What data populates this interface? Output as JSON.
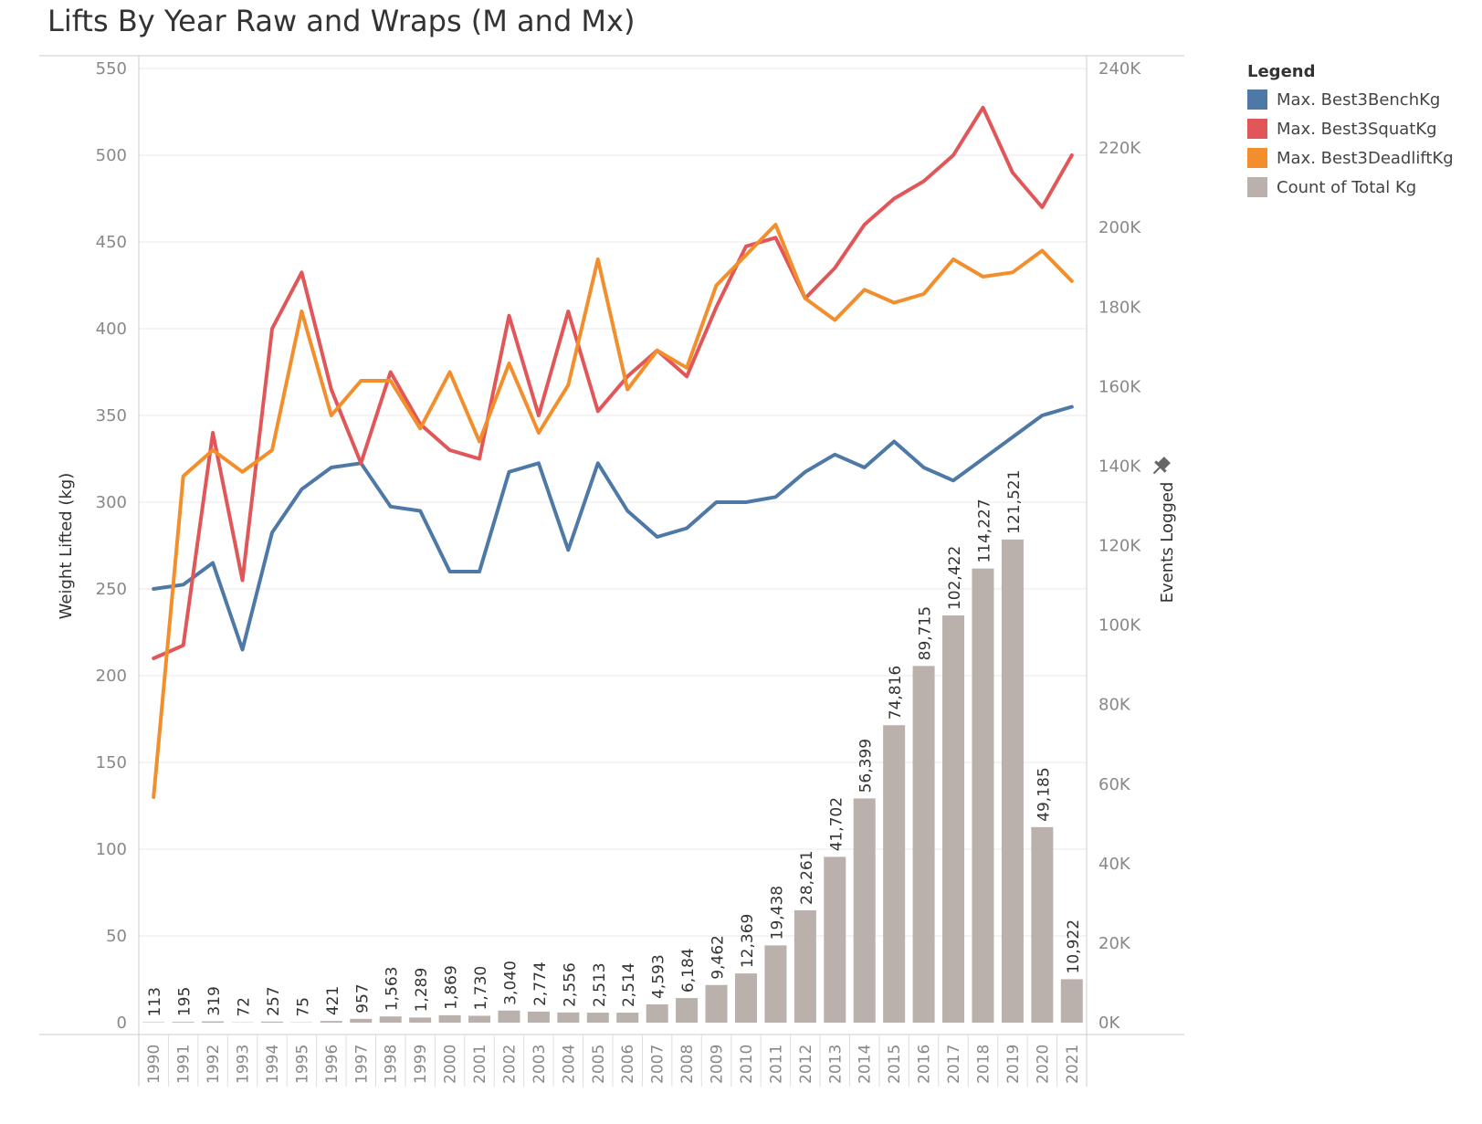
{
  "chart_data": {
    "type": "bar+line",
    "title": "Lifts By Year Raw and Wraps (M and Mx)",
    "ylabel_left": "Weight Lifted (kg)",
    "ylabel_right": "Events Logged",
    "ylim_left": [
      0,
      550
    ],
    "ylim_right": [
      0,
      240000
    ],
    "yticks_left": [
      "0",
      "50",
      "100",
      "150",
      "200",
      "250",
      "300",
      "350",
      "400",
      "450",
      "500",
      "550"
    ],
    "yticks_right": [
      "0K",
      "20K",
      "40K",
      "60K",
      "80K",
      "100K",
      "120K",
      "140K",
      "160K",
      "180K",
      "200K",
      "220K",
      "240K"
    ],
    "categories": [
      "1990",
      "1991",
      "1992",
      "1993",
      "1994",
      "1995",
      "1996",
      "1997",
      "1998",
      "1999",
      "2000",
      "2001",
      "2002",
      "2003",
      "2004",
      "2005",
      "2006",
      "2007",
      "2008",
      "2009",
      "2010",
      "2011",
      "2012",
      "2013",
      "2014",
      "2015",
      "2016",
      "2017",
      "2018",
      "2019",
      "2020",
      "2021"
    ],
    "legend_title": "Legend",
    "series": [
      {
        "name": "Max. Best3BenchKg",
        "kind": "line",
        "axis": "left",
        "color": "#4e79a7",
        "values": [
          250,
          252.5,
          265,
          215,
          282.5,
          307.5,
          320,
          322.5,
          297.5,
          295,
          260,
          260,
          317.5,
          322.5,
          272.5,
          322.5,
          295,
          280,
          285,
          300,
          300,
          303,
          317.5,
          327.5,
          320,
          335,
          320,
          312.5,
          325,
          337.5,
          350,
          355
        ]
      },
      {
        "name": "Max. Best3SquatKg",
        "kind": "line",
        "axis": "left",
        "color": "#e15759",
        "values": [
          210,
          217.5,
          340,
          255,
          400,
          432.5,
          365,
          322.5,
          375,
          345,
          330,
          325,
          407.5,
          350,
          410,
          352.5,
          372.5,
          387.5,
          372.5,
          412.5,
          447.5,
          452.5,
          417.5,
          435,
          460,
          475,
          485,
          500,
          527.5,
          490,
          470,
          500
        ]
      },
      {
        "name": "Max. Best3DeadliftKg",
        "kind": "line",
        "axis": "left",
        "color": "#f28e2b",
        "values": [
          130,
          315,
          330,
          317.5,
          330,
          410,
          350,
          370,
          370,
          342.5,
          375,
          335,
          380,
          340,
          367.5,
          440,
          365,
          387.5,
          377.5,
          425,
          442.5,
          460,
          417.5,
          405,
          422.5,
          415,
          420,
          440,
          430,
          432.5,
          445,
          427.5
        ]
      },
      {
        "name": "Count of Total Kg",
        "kind": "bar",
        "axis": "right",
        "color": "#bab0ac",
        "values": [
          113,
          195,
          319,
          72,
          257,
          75,
          421,
          957,
          1563,
          1289,
          1869,
          1730,
          3040,
          2774,
          2556,
          2513,
          2514,
          4593,
          6184,
          9462,
          12369,
          19438,
          28261,
          41702,
          56399,
          74816,
          89715,
          102422,
          114227,
          121521,
          49185,
          10922
        ],
        "labels": [
          "113",
          "195",
          "319",
          "72",
          "257",
          "75",
          "421",
          "957",
          "1,563",
          "1,289",
          "1,869",
          "1,730",
          "3,040",
          "2,774",
          "2,556",
          "2,513",
          "2,514",
          "4,593",
          "6,184",
          "9,462",
          "12,369",
          "19,438",
          "28,261",
          "41,702",
          "56,399",
          "74,816",
          "89,715",
          "102,422",
          "114,227",
          "121,521",
          "49,185",
          "10,922"
        ]
      }
    ],
    "grid": true,
    "legend_position": "right"
  },
  "colors": {
    "grid": "#e8e8e8",
    "axis": "#cccccc",
    "tick_text": "#888888",
    "label_text": "#333333",
    "pin_icon": "#666666"
  },
  "icons": {
    "pin": "pin-icon"
  }
}
